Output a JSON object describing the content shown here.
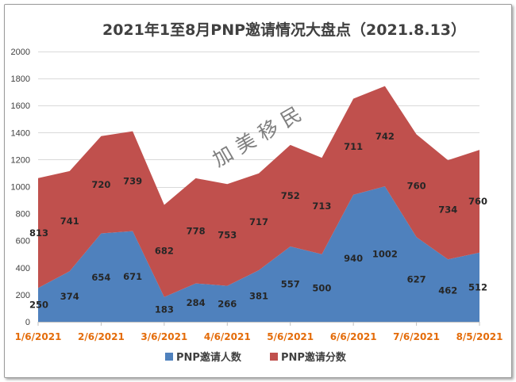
{
  "chart_data": {
    "type": "area",
    "stacked": true,
    "title": "2021年1至8月PNP邀请情况大盘点（2021.8.13）",
    "watermark": "加 美 移 民",
    "xlabels": [
      "1/6/2021",
      "2/6/2021",
      "3/6/2021",
      "4/6/2021",
      "5/6/2021",
      "6/6/2021",
      "7/6/2021",
      "8/5/2021"
    ],
    "ylim": [
      0,
      2000
    ],
    "yticks": [
      0,
      200,
      400,
      600,
      800,
      1000,
      1200,
      1400,
      1600,
      1800,
      2000
    ],
    "series": [
      {
        "name": "PNP邀请人数",
        "color": "#4f81bd",
        "values": [
          250,
          374,
          654,
          671,
          183,
          284,
          266,
          381,
          557,
          500,
          940,
          1002,
          627,
          462,
          512
        ]
      },
      {
        "name": "PNP邀请分数",
        "color": "#c0504d",
        "values": [
          813,
          741,
          720,
          739,
          682,
          778,
          753,
          717,
          752,
          713,
          711,
          742,
          760,
          734,
          760
        ]
      }
    ],
    "legend_position": "bottom"
  }
}
